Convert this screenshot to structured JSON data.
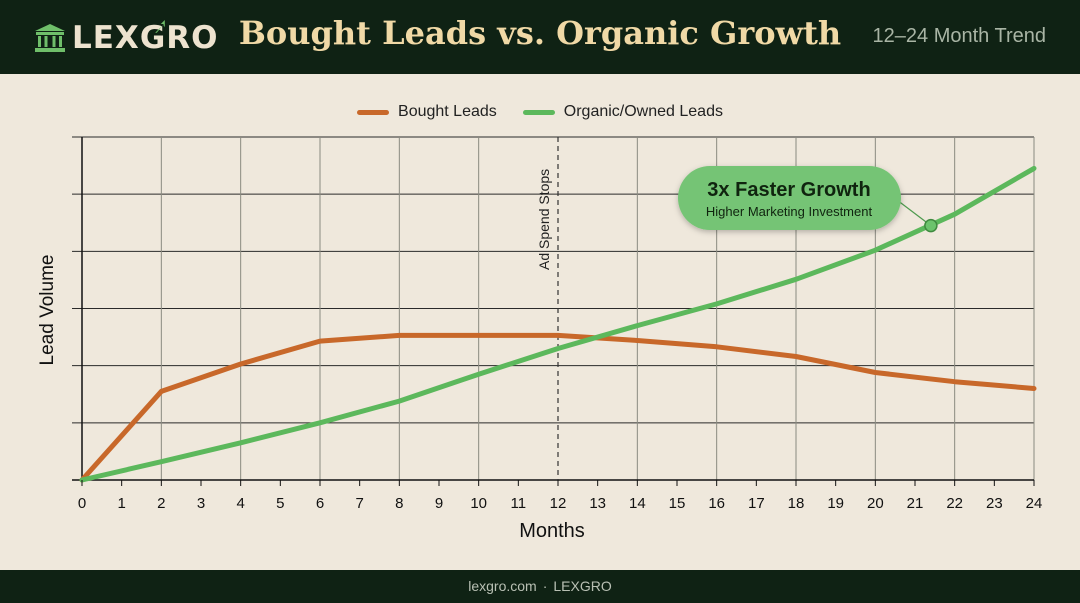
{
  "brand": {
    "name": "LEXGRO"
  },
  "header": {
    "title": "Bought Leads vs. Organic Growth",
    "subtitle": "12–24 Month Trend"
  },
  "footer": {
    "site": "lexgro.com",
    "separator": "·",
    "brand": "LEXGRO"
  },
  "colors": {
    "bought": "#c8682a",
    "organic": "#5cb85c",
    "header_bg": "#0f2214",
    "grid": "#333333"
  },
  "chart_data": {
    "type": "line",
    "xlabel": "Months",
    "ylabel": "Lead Volume",
    "xlim": [
      0,
      24
    ],
    "ylim": [
      0,
      6
    ],
    "x_ticks": [
      0,
      1,
      2,
      3,
      4,
      5,
      6,
      7,
      8,
      9,
      10,
      11,
      12,
      13,
      14,
      15,
      16,
      17,
      18,
      19,
      20,
      21,
      22,
      23,
      24
    ],
    "y_gridlines": [
      1,
      2,
      3,
      4,
      5,
      6
    ],
    "grid": true,
    "legend_position": "top-center",
    "series": [
      {
        "name": "Bought Leads",
        "color": "#c8682a",
        "points": [
          [
            0,
            0
          ],
          [
            2,
            1.55
          ],
          [
            4,
            2.03
          ],
          [
            6,
            2.43
          ],
          [
            8,
            2.53
          ],
          [
            10,
            2.53
          ],
          [
            12,
            2.53
          ],
          [
            14,
            2.44
          ],
          [
            16,
            2.33
          ],
          [
            18,
            2.16
          ],
          [
            20,
            1.88
          ],
          [
            22,
            1.72
          ],
          [
            24,
            1.6
          ]
        ]
      },
      {
        "name": "Organic/Owned Leads",
        "color": "#5cb85c",
        "points": [
          [
            0,
            0
          ],
          [
            2,
            0.32
          ],
          [
            4,
            0.65
          ],
          [
            6,
            1.0
          ],
          [
            8,
            1.38
          ],
          [
            10,
            1.85
          ],
          [
            12,
            2.3
          ],
          [
            14,
            2.7
          ],
          [
            16,
            3.08
          ],
          [
            18,
            3.51
          ],
          [
            20,
            4.02
          ],
          [
            22,
            4.65
          ],
          [
            24,
            5.45
          ]
        ]
      }
    ],
    "annotations": [
      {
        "id": "ad-spend-stops",
        "x": 12,
        "text": "Ad Spend Stops"
      },
      {
        "id": "callout",
        "x": 21.4,
        "y": 4.45,
        "title": "3x Faster Growth",
        "subtitle": "Higher Marketing Investment"
      }
    ]
  }
}
